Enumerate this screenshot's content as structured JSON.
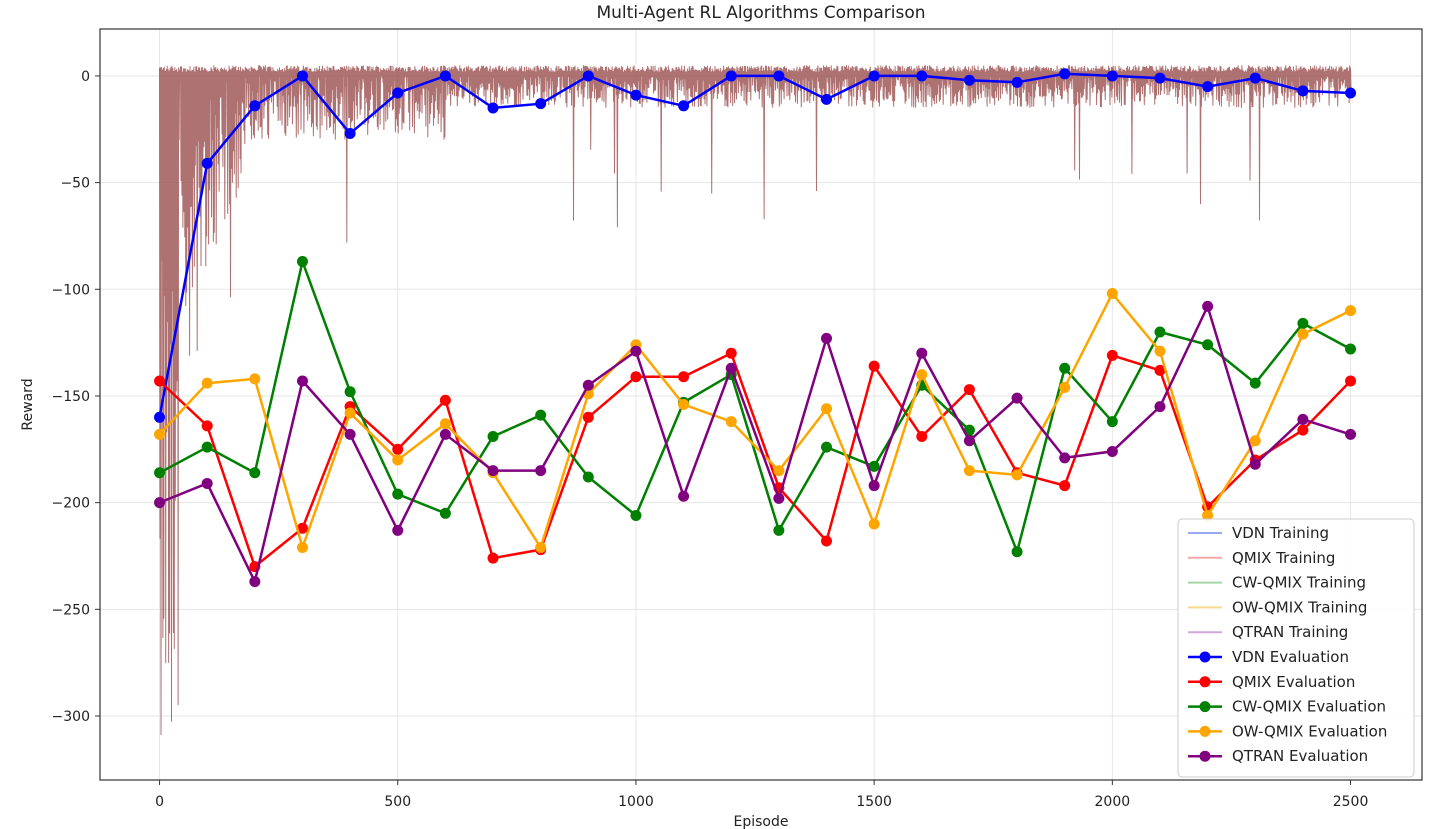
{
  "chart_data": {
    "type": "line",
    "title": "Multi-Agent RL Algorithms Comparison",
    "xlabel": "Episode",
    "ylabel": "Reward",
    "xlim": [
      -125,
      2650
    ],
    "ylim": [
      -330,
      22
    ],
    "x_ticks": [
      0,
      500,
      1000,
      1500,
      2000,
      2500
    ],
    "y_ticks": [
      0,
      -50,
      -100,
      -150,
      -200,
      -250,
      -300
    ],
    "grid": true,
    "legend_position": "lower-right",
    "training_series": [
      {
        "name": "VDN Training",
        "color": "#9aa8f0"
      },
      {
        "name": "QMIX Training",
        "color": "#f4a7a7"
      },
      {
        "name": "CW-QMIX Training",
        "color": "#a6d6a6"
      },
      {
        "name": "OW-QMIX Training",
        "color": "#f8d98f"
      },
      {
        "name": "QTRAN Training",
        "color": "#d2a6dc"
      }
    ],
    "training_overlay_color": "#9b4f4f",
    "eval_x": [
      0,
      100,
      200,
      300,
      400,
      500,
      600,
      700,
      800,
      900,
      1000,
      1100,
      1200,
      1300,
      1400,
      1500,
      1600,
      1700,
      1800,
      1900,
      2000,
      2100,
      2200,
      2300,
      2400,
      2500
    ],
    "series": [
      {
        "name": "VDN Evaluation",
        "color": "#0000ff",
        "values": [
          -160,
          -41,
          -14,
          0,
          -27,
          -8,
          0,
          -15,
          -13,
          0,
          -9,
          -14,
          0,
          0,
          -11,
          0,
          0,
          -2,
          -3,
          1,
          0,
          -1,
          -5,
          -1,
          -7,
          -8
        ]
      },
      {
        "name": "QMIX Evaluation",
        "color": "#ff0000",
        "values": [
          -143,
          -164,
          -230,
          -212,
          -155,
          -175,
          -152,
          -226,
          -222,
          -160,
          -141,
          -141,
          -130,
          -193,
          -218,
          -136,
          -169,
          -147,
          -186,
          -192,
          -131,
          -138,
          -202,
          -180,
          -166,
          -143
        ]
      },
      {
        "name": "CW-QMIX Evaluation",
        "color": "#008000",
        "values": [
          -186,
          -174,
          -186,
          -87,
          -148,
          -196,
          -205,
          -169,
          -159,
          -188,
          -206,
          -153,
          -140,
          -213,
          -174,
          -183,
          -145,
          -166,
          -223,
          -137,
          -162,
          -120,
          -126,
          -144,
          -116,
          -128
        ]
      },
      {
        "name": "OW-QMIX Evaluation",
        "color": "#ffa500",
        "values": [
          -168,
          -144,
          -142,
          -221,
          -158,
          -180,
          -163,
          -186,
          -221,
          -149,
          -126,
          -154,
          -162,
          -185,
          -156,
          -210,
          -140,
          -185,
          -187,
          -146,
          -102,
          -129,
          -206,
          -171,
          -121,
          -110
        ]
      },
      {
        "name": "QTRAN Evaluation",
        "color": "#800080",
        "values": [
          -200,
          -191,
          -237,
          -143,
          -168,
          -213,
          -168,
          -185,
          -185,
          -145,
          -129,
          -197,
          -137,
          -198,
          -123,
          -192,
          -130,
          -171,
          -151,
          -179,
          -176,
          -155,
          -108,
          -182,
          -161,
          -168
        ]
      }
    ]
  }
}
